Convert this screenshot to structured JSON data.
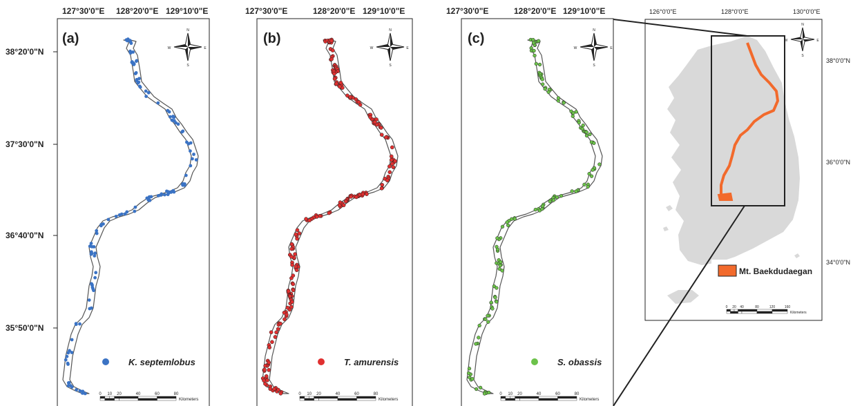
{
  "panels": [
    {
      "id": "a",
      "label": "(a)",
      "species": "K. septemlobus",
      "color": "#3b73c4"
    },
    {
      "id": "b",
      "label": "(b)",
      "species": "T. amurensis",
      "color": "#e03030"
    },
    {
      "id": "c",
      "label": "(c)",
      "species": "S. obassis",
      "color": "#6cc24a"
    }
  ],
  "lon_ticks": [
    "127°30'0\"E",
    "128°20'0\"E",
    "129°10'0\"E"
  ],
  "lat_ticks": [
    "38°20'0\"N",
    "37°30'0\"N",
    "36°40'0\"N",
    "35°50'0\"N"
  ],
  "scale": {
    "ticks": [
      "0",
      "10",
      "20",
      "40",
      "60",
      "80"
    ],
    "unit": "Kilometers"
  },
  "north": {
    "n": "N",
    "e": "E",
    "s": "S",
    "w": "W"
  },
  "inset": {
    "lon_ticks": [
      "126°0'0\"E",
      "128°0'0\"E",
      "130°0'0\"E"
    ],
    "lat_ticks": [
      "38°0'0\"N",
      "36°0'0\"N",
      "34°0'0\"N"
    ],
    "legend_label": "Mt. Baekdudaegan",
    "legend_color": "#f26a2c",
    "scale_ticks": [
      "0",
      "20",
      "40",
      "80",
      "120",
      "160"
    ],
    "scale_unit": "Kilometers"
  }
}
